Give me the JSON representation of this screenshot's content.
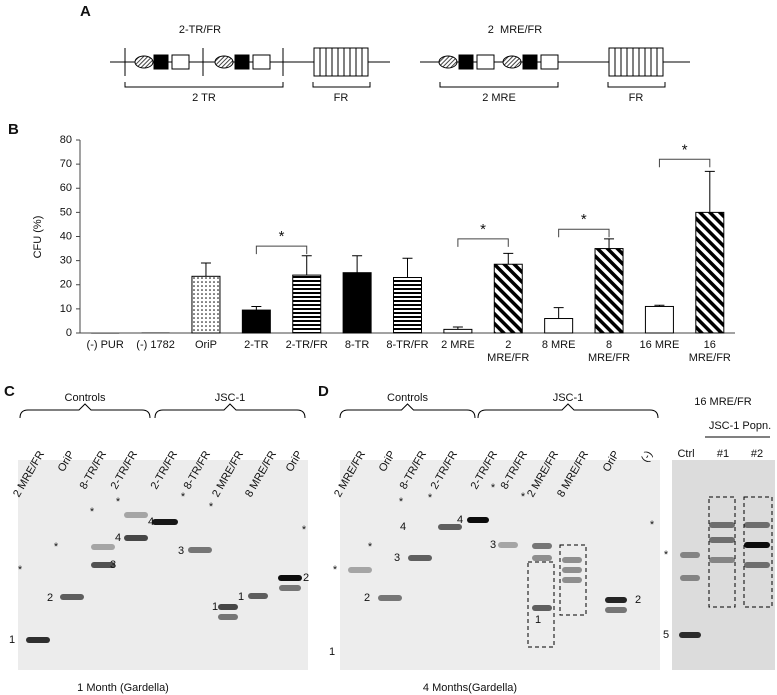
{
  "panel_labels": [
    "A",
    "B",
    "C",
    "D"
  ],
  "panel_a": {
    "constructs": [
      {
        "title": "2-TR/FR",
        "region": "2 TR",
        "fr": "FR"
      },
      {
        "title": "2  MRE/FR",
        "region": "2 MRE",
        "fr": "FR"
      }
    ]
  },
  "chart_data": {
    "type": "bar",
    "y_label": "CFU (%)",
    "categories": [
      "(-) PUR",
      "(-) 1782",
      "OriP",
      "2-TR",
      "2-TR/FR",
      "8-TR",
      "8-TR/FR",
      "2 MRE",
      "2 MRE/FR",
      "8 MRE",
      "8 MRE/FR",
      "16 MRE",
      "16 MRE/FR"
    ],
    "values": [
      0,
      0.2,
      23.5,
      9.5,
      24,
      25,
      23,
      1.5,
      28.5,
      6,
      35,
      11,
      50
    ],
    "errors": [
      0,
      0,
      5.5,
      1.5,
      8,
      7,
      8,
      1,
      4.5,
      4.5,
      4,
      0.5,
      17
    ],
    "patterns": [
      "none",
      "none",
      "dots",
      "solid",
      "hstripes",
      "solid",
      "hstripes",
      "white",
      "diagonal",
      "white",
      "diagonal",
      "white",
      "diagonal"
    ],
    "color": "#000000",
    "ylim": [
      0,
      80
    ],
    "yticks": [
      0,
      10,
      20,
      30,
      40,
      50,
      60,
      70,
      80
    ],
    "significance": [
      "*",
      "*",
      "*",
      "*"
    ]
  },
  "panel_c": {
    "groups": [
      "Controls",
      "JSC-1"
    ],
    "lanes": [
      "2 MRE/FR",
      "OriP",
      "8-TR/FR",
      "2-TR/FR",
      "2-TR/FR",
      "8-TR/FR",
      "2 MRE/FR",
      "8 MRE/FR",
      "OriP"
    ],
    "markers": [
      "*",
      "*",
      "*",
      "*",
      "*",
      "*",
      "*",
      "1",
      "2",
      "3",
      "4",
      "4",
      "3",
      "1",
      "1",
      "2"
    ],
    "caption": "1 Month (Gardella)"
  },
  "panel_d": {
    "groups": [
      "Controls",
      "JSC-1"
    ],
    "lanes": [
      "2 MRE/FR",
      "OriP",
      "8-TR/FR",
      "2-TR/FR",
      "2-TR/FR",
      "8-TR/FR",
      "2 MRE/FR",
      "8 MRE/FR",
      "OriP",
      "(-)"
    ],
    "markers": [
      "*",
      "*",
      "*",
      "*",
      "*",
      "*",
      "*",
      "1",
      "2",
      "3",
      "4",
      "4",
      "3",
      "1",
      "2"
    ],
    "caption": "4 Months(Gardella)",
    "side": {
      "title": "16 MRE/FR",
      "group": "JSC-1 Popn.",
      "lanes": [
        "Ctrl",
        "#1",
        "#2"
      ],
      "markers": [
        "*",
        "5"
      ]
    }
  }
}
